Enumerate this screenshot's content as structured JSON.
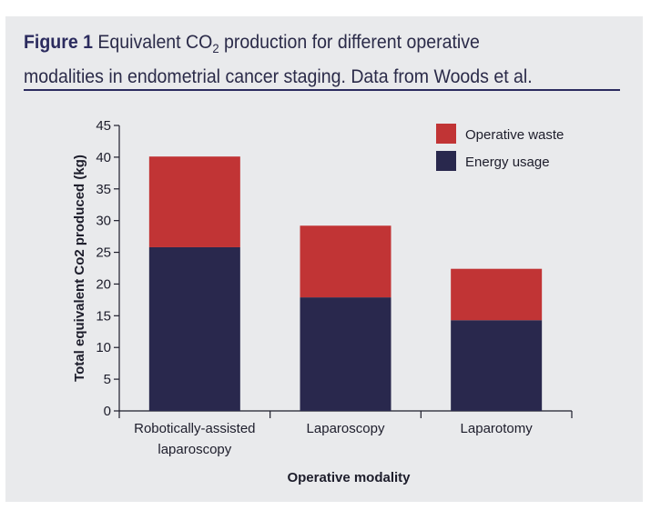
{
  "caption": {
    "label": "Figure 1",
    "text_before_sub": " Equivalent CO",
    "subscript": "2",
    "text_after_sub": " production for different operative",
    "line2": "modalities in endometrial cancer staging. Data from Woods et al."
  },
  "colors": {
    "panel_bg": "#e9eaec",
    "operative_waste": "#c13435",
    "energy_usage": "#29284d",
    "caption_label": "#2b2b5e"
  },
  "chart_data": {
    "type": "bar",
    "stacked": true,
    "categories": [
      [
        "Robotically-assisted",
        "laparoscopy"
      ],
      [
        "Laparoscopy"
      ],
      [
        "Laparotomy"
      ]
    ],
    "series": [
      {
        "name": "Energy usage",
        "values": [
          25.8,
          17.9,
          14.3
        ],
        "color": "#29284d"
      },
      {
        "name": "Operative waste",
        "values": [
          14.3,
          11.3,
          8.1
        ],
        "color": "#c13435"
      }
    ],
    "legend_order": [
      "Operative waste",
      "Energy usage"
    ],
    "legend_position": "top-right",
    "xlabel": "Operative modality",
    "ylabel": "Total equivalent Co2 produced (kg)",
    "ylim": [
      0,
      45
    ],
    "yticks": [
      0,
      5,
      10,
      15,
      20,
      25,
      30,
      35,
      40,
      45
    ],
    "grid": false
  }
}
